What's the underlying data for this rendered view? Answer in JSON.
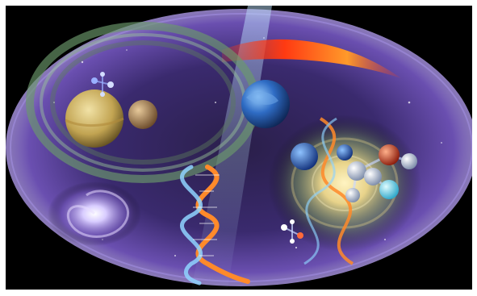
{
  "image": {
    "subject": "cosmic-science-collage",
    "background_color": "#000000",
    "frame_color": "#ffffff",
    "palette": {
      "nebula_purple": "#6a4fb0",
      "nebula_light": "#c9b7ff",
      "beam_blue": "#bfe3ff",
      "flare_red": "#ff3a12",
      "flare_orange": "#ff9a2a",
      "dna_orange": "#ff8a2a",
      "dna_blue": "#8fd3ff",
      "planet_gold": "#d8c27a",
      "earth_blue": "#2f6cc4"
    },
    "elements": [
      "ringed-planet",
      "moon",
      "earth-like-planet",
      "spiral-galaxy",
      "golden-galaxy",
      "dna-helix",
      "light-beam",
      "solar-flare",
      "molecule-models"
    ]
  }
}
